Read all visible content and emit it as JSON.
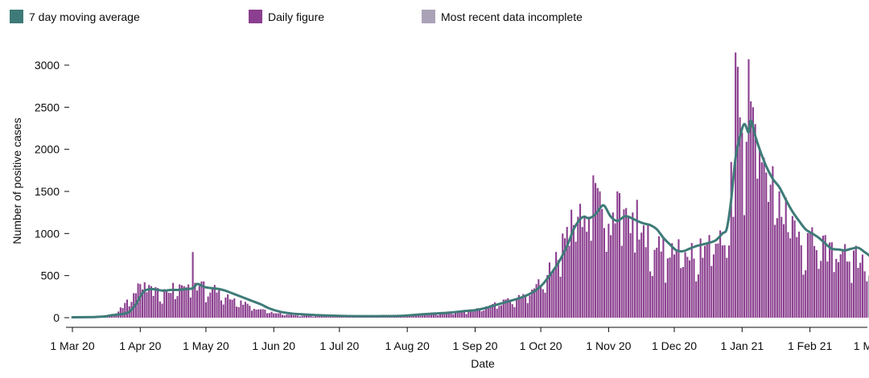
{
  "legend": {
    "items": [
      {
        "label": "7 day moving average",
        "color": "#3e7b78"
      },
      {
        "label": "Daily figure",
        "color": "#8b3f8f"
      },
      {
        "label": "Most recent data incomplete",
        "color": "#aaa3b7"
      }
    ]
  },
  "chart_data": {
    "type": "bar",
    "title": "",
    "xlabel": "Date",
    "ylabel": "Number of positive cases",
    "ylim": [
      0,
      3200
    ],
    "yticks": [
      0,
      500,
      1000,
      1500,
      2000,
      2500,
      3000
    ],
    "xticks": [
      {
        "label": "1 Mar 20",
        "day": 0
      },
      {
        "label": "1 Apr 20",
        "day": 31
      },
      {
        "label": "1 May 20",
        "day": 61
      },
      {
        "label": "1 Jun 20",
        "day": 92
      },
      {
        "label": "1 Jul 20",
        "day": 122
      },
      {
        "label": "1 Aug 20",
        "day": 153
      },
      {
        "label": "1 Sep 20",
        "day": 184
      },
      {
        "label": "1 Oct 20",
        "day": 214
      },
      {
        "label": "1 Nov 20",
        "day": 245
      },
      {
        "label": "1 Dec 20",
        "day": 275
      },
      {
        "label": "1 Jan 21",
        "day": 306
      },
      {
        "label": "1 Feb 21",
        "day": 337
      },
      {
        "label": "1 Mar",
        "day": 365
      }
    ],
    "start_date": "2020-02-28",
    "series": [
      {
        "name": "Daily figure",
        "color": "#8b3f8f",
        "type": "bar",
        "keypoints": [
          [
            0,
            2
          ],
          [
            8,
            5
          ],
          [
            14,
            20
          ],
          [
            20,
            60
          ],
          [
            24,
            150
          ],
          [
            27,
            250
          ],
          [
            29,
            330
          ],
          [
            31,
            370
          ],
          [
            33,
            350
          ],
          [
            36,
            320
          ],
          [
            40,
            300
          ],
          [
            44,
            330
          ],
          [
            48,
            360
          ],
          [
            52,
            380
          ],
          [
            57,
            380
          ],
          [
            61,
            350
          ],
          [
            64,
            340
          ],
          [
            68,
            300
          ],
          [
            72,
            260
          ],
          [
            76,
            210
          ],
          [
            80,
            160
          ],
          [
            84,
            110
          ],
          [
            88,
            80
          ],
          [
            92,
            60
          ],
          [
            98,
            40
          ],
          [
            104,
            30
          ],
          [
            112,
            20
          ],
          [
            122,
            15
          ],
          [
            135,
            12
          ],
          [
            145,
            18
          ],
          [
            153,
            30
          ],
          [
            160,
            45
          ],
          [
            170,
            60
          ],
          [
            178,
            75
          ],
          [
            184,
            90
          ],
          [
            189,
            130
          ],
          [
            194,
            170
          ],
          [
            199,
            200
          ],
          [
            205,
            240
          ],
          [
            210,
            320
          ],
          [
            214,
            420
          ],
          [
            218,
            600
          ],
          [
            222,
            800
          ],
          [
            226,
            1000
          ],
          [
            229,
            1120
          ],
          [
            232,
            1200
          ],
          [
            236,
            1300
          ],
          [
            240,
            1330
          ],
          [
            243,
            1270
          ],
          [
            246,
            1200
          ],
          [
            249,
            1180
          ],
          [
            252,
            1200
          ],
          [
            256,
            1150
          ],
          [
            259,
            1070
          ],
          [
            262,
            1000
          ],
          [
            265,
            920
          ],
          [
            268,
            850
          ],
          [
            272,
            800
          ],
          [
            276,
            780
          ],
          [
            280,
            810
          ],
          [
            284,
            850
          ],
          [
            288,
            880
          ],
          [
            292,
            900
          ],
          [
            296,
            920
          ],
          [
            299,
            1000
          ],
          [
            301,
            1200
          ],
          [
            303,
            1700
          ],
          [
            305,
            2200
          ],
          [
            307,
            2350
          ],
          [
            309,
            2300
          ],
          [
            311,
            2100
          ],
          [
            314,
            1900
          ],
          [
            317,
            1700
          ],
          [
            320,
            1550
          ],
          [
            323,
            1400
          ],
          [
            326,
            1300
          ],
          [
            329,
            1150
          ],
          [
            332,
            1050
          ],
          [
            335,
            950
          ],
          [
            338,
            900
          ],
          [
            341,
            850
          ],
          [
            344,
            820
          ],
          [
            348,
            820
          ],
          [
            352,
            800
          ],
          [
            356,
            760
          ],
          [
            360,
            700
          ],
          [
            363,
            650
          ],
          [
            365,
            600
          ]
        ],
        "spikes": [
          [
            31,
            400
          ],
          [
            33,
            420
          ],
          [
            55,
            780
          ],
          [
            59,
            430
          ],
          [
            60,
            430
          ],
          [
            219,
            520
          ],
          [
            224,
            1000
          ],
          [
            229,
            1100
          ],
          [
            231,
            1200
          ],
          [
            234,
            1200
          ],
          [
            236,
            1200
          ],
          [
            238,
            1690
          ],
          [
            239,
            1600
          ],
          [
            241,
            1500
          ],
          [
            247,
            1250
          ],
          [
            249,
            1500
          ],
          [
            250,
            1480
          ],
          [
            254,
            1200
          ],
          [
            258,
            1400
          ],
          [
            301,
            1850
          ],
          [
            303,
            3150
          ],
          [
            304,
            2980
          ],
          [
            305,
            2380
          ],
          [
            306,
            2200
          ],
          [
            308,
            2090
          ],
          [
            309,
            3070
          ],
          [
            310,
            2570
          ],
          [
            311,
            2500
          ],
          [
            312,
            2300
          ],
          [
            314,
            2000
          ],
          [
            316,
            1900
          ],
          [
            320,
            1800
          ],
          [
            323,
            1500
          ]
        ],
        "noise": 0.2,
        "recent_incomplete": [
          [
            364,
            500
          ],
          [
            365,
            110
          ]
        ]
      },
      {
        "name": "7 day moving average",
        "color": "#3e7b78",
        "type": "line",
        "points": [
          [
            0,
            5
          ],
          [
            10,
            8
          ],
          [
            15,
            15
          ],
          [
            18,
            30
          ],
          [
            22,
            40
          ],
          [
            26,
            70
          ],
          [
            29,
            160
          ],
          [
            31,
            250
          ],
          [
            33,
            320
          ],
          [
            36,
            340
          ],
          [
            39,
            330
          ],
          [
            42,
            320
          ],
          [
            45,
            330
          ],
          [
            48,
            330
          ],
          [
            52,
            340
          ],
          [
            55,
            350
          ],
          [
            57,
            400
          ],
          [
            59,
            380
          ],
          [
            61,
            360
          ],
          [
            64,
            350
          ],
          [
            67,
            340
          ],
          [
            70,
            320
          ],
          [
            74,
            280
          ],
          [
            78,
            240
          ],
          [
            82,
            200
          ],
          [
            86,
            160
          ],
          [
            90,
            110
          ],
          [
            95,
            70
          ],
          [
            100,
            50
          ],
          [
            105,
            40
          ],
          [
            112,
            30
          ],
          [
            122,
            22
          ],
          [
            130,
            18
          ],
          [
            140,
            18
          ],
          [
            150,
            22
          ],
          [
            155,
            30
          ],
          [
            160,
            40
          ],
          [
            166,
            50
          ],
          [
            172,
            60
          ],
          [
            178,
            75
          ],
          [
            184,
            90
          ],
          [
            188,
            110
          ],
          [
            192,
            140
          ],
          [
            196,
            170
          ],
          [
            200,
            200
          ],
          [
            204,
            230
          ],
          [
            208,
            270
          ],
          [
            212,
            330
          ],
          [
            215,
            400
          ],
          [
            218,
            500
          ],
          [
            222,
            650
          ],
          [
            226,
            850
          ],
          [
            229,
            1050
          ],
          [
            232,
            1170
          ],
          [
            234,
            1200
          ],
          [
            236,
            1180
          ],
          [
            239,
            1230
          ],
          [
            241,
            1300
          ],
          [
            243,
            1330
          ],
          [
            246,
            1200
          ],
          [
            249,
            1150
          ],
          [
            252,
            1200
          ],
          [
            254,
            1200
          ],
          [
            258,
            1150
          ],
          [
            261,
            1120
          ],
          [
            264,
            1100
          ],
          [
            267,
            1050
          ],
          [
            270,
            950
          ],
          [
            273,
            870
          ],
          [
            276,
            800
          ],
          [
            279,
            790
          ],
          [
            282,
            820
          ],
          [
            285,
            850
          ],
          [
            288,
            870
          ],
          [
            291,
            890
          ],
          [
            294,
            920
          ],
          [
            297,
            1000
          ],
          [
            299,
            1060
          ],
          [
            301,
            1400
          ],
          [
            303,
            1900
          ],
          [
            305,
            2150
          ],
          [
            307,
            2300
          ],
          [
            309,
            2200
          ],
          [
            310,
            2340
          ],
          [
            312,
            2160
          ],
          [
            314,
            2000
          ],
          [
            317,
            1800
          ],
          [
            320,
            1650
          ],
          [
            323,
            1550
          ],
          [
            326,
            1400
          ],
          [
            329,
            1260
          ],
          [
            332,
            1150
          ],
          [
            335,
            1050
          ],
          [
            338,
            1000
          ],
          [
            341,
            950
          ],
          [
            344,
            880
          ],
          [
            347,
            820
          ],
          [
            350,
            810
          ],
          [
            353,
            800
          ],
          [
            356,
            820
          ],
          [
            359,
            830
          ],
          [
            362,
            780
          ],
          [
            365,
            720
          ]
        ]
      }
    ]
  }
}
